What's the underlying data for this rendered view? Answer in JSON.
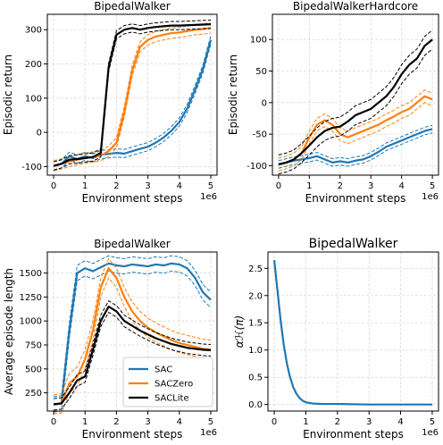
{
  "colors": {
    "SAC": "#1f77b4",
    "SACZero": "#ff7f0e",
    "SACLite": "#000000",
    "grid": "#d9d9d9"
  },
  "chart_data": [
    {
      "type": "line",
      "title": "BipedalWalker",
      "xlabel": "Environment steps",
      "ylabel": "Episodic return",
      "x_offset_label": "1e6",
      "xlim": [
        -0.2,
        5.2
      ],
      "ylim": [
        -125,
        345
      ],
      "xticks": [
        0,
        1,
        2,
        3,
        4,
        5
      ],
      "yticks": [
        -100,
        0,
        100,
        200,
        300
      ],
      "grid": true,
      "series": [
        {
          "name": "SAC",
          "x": [
            0,
            0.25,
            0.5,
            0.75,
            1.0,
            1.25,
            1.5,
            1.75,
            2.0,
            2.25,
            2.5,
            2.75,
            3.0,
            3.25,
            3.5,
            3.75,
            4.0,
            4.25,
            4.5,
            4.75,
            5.0
          ],
          "y": [
            -98,
            -92,
            -70,
            -78,
            -70,
            -75,
            -65,
            -63,
            -60,
            -62,
            -55,
            -48,
            -42,
            -30,
            -15,
            5,
            30,
            70,
            125,
            185,
            270
          ],
          "band": 12
        },
        {
          "name": "SACZero",
          "x": [
            0,
            0.25,
            0.5,
            0.75,
            1.0,
            1.25,
            1.5,
            1.75,
            2.0,
            2.25,
            2.5,
            2.75,
            3.0,
            3.25,
            3.5,
            3.75,
            4.0,
            4.25,
            4.5,
            4.75,
            5.0
          ],
          "y": [
            -98,
            -92,
            -85,
            -80,
            -75,
            -72,
            -68,
            -55,
            -30,
            60,
            180,
            250,
            270,
            280,
            285,
            290,
            292,
            296,
            300,
            302,
            305
          ],
          "band": 15
        },
        {
          "name": "SACLite",
          "x": [
            0,
            0.25,
            0.5,
            0.75,
            1.0,
            1.25,
            1.5,
            1.75,
            2.0,
            2.25,
            2.5,
            2.75,
            3.0,
            3.25,
            3.5,
            3.75,
            4.0,
            4.25,
            4.5,
            4.75,
            5.0
          ],
          "y": [
            -98,
            -92,
            -80,
            -78,
            -75,
            -72,
            -60,
            190,
            285,
            300,
            305,
            300,
            305,
            308,
            310,
            312,
            312,
            313,
            314,
            315,
            316
          ],
          "band": 12
        }
      ]
    },
    {
      "type": "line",
      "title": "BipedalWalkerHardcore",
      "xlabel": "Environment steps",
      "ylabel": "Episodic return",
      "x_offset_label": "1e6",
      "xlim": [
        -0.2,
        5.2
      ],
      "ylim": [
        -115,
        140
      ],
      "xticks": [
        0,
        1,
        2,
        3,
        4,
        5
      ],
      "yticks": [
        -100,
        -50,
        0,
        50,
        100
      ],
      "grid": true,
      "series": [
        {
          "name": "SAC",
          "x": [
            0,
            0.25,
            0.5,
            0.75,
            1.0,
            1.25,
            1.5,
            1.75,
            2.0,
            2.25,
            2.5,
            2.75,
            3.0,
            3.25,
            3.5,
            3.75,
            4.0,
            4.25,
            4.5,
            4.75,
            5.0
          ],
          "y": [
            -98,
            -95,
            -92,
            -90,
            -88,
            -85,
            -90,
            -95,
            -93,
            -95,
            -92,
            -90,
            -85,
            -78,
            -70,
            -65,
            -60,
            -55,
            -50,
            -45,
            -42
          ],
          "band": 6
        },
        {
          "name": "SACZero",
          "x": [
            0,
            0.25,
            0.5,
            0.75,
            1.0,
            1.25,
            1.5,
            1.75,
            2.0,
            2.25,
            2.5,
            2.75,
            3.0,
            3.25,
            3.5,
            3.75,
            4.0,
            4.25,
            4.5,
            4.75,
            5.0
          ],
          "y": [
            -98,
            -95,
            -90,
            -80,
            -55,
            -35,
            -28,
            -35,
            -50,
            -55,
            -50,
            -45,
            -40,
            -35,
            -28,
            -22,
            -15,
            -10,
            0,
            10,
            5
          ],
          "band": 10
        },
        {
          "name": "SACLite",
          "x": [
            0,
            0.25,
            0.5,
            0.75,
            1.0,
            1.25,
            1.5,
            1.75,
            2.0,
            2.25,
            2.5,
            2.75,
            3.0,
            3.25,
            3.5,
            3.75,
            4.0,
            4.25,
            4.5,
            4.75,
            5.0
          ],
          "y": [
            -98,
            -95,
            -90,
            -80,
            -68,
            -55,
            -45,
            -40,
            -38,
            -30,
            -20,
            -15,
            -10,
            0,
            10,
            25,
            45,
            60,
            70,
            90,
            100
          ],
          "band": 15
        }
      ]
    },
    {
      "type": "line",
      "title": "BipedalWalker",
      "xlabel": "Environment steps",
      "ylabel": "Average episode length",
      "x_offset_label": "1e6",
      "xlim": [
        -0.2,
        5.2
      ],
      "ylim": [
        60,
        1720
      ],
      "xticks": [
        0,
        1,
        2,
        3,
        4,
        5
      ],
      "yticks": [
        250,
        500,
        750,
        1000,
        1250,
        1500
      ],
      "yticklabels": [
        "250",
        "500",
        "750",
        "1000",
        "1250",
        "1500"
      ],
      "grid": true,
      "legend": {
        "position": "lower-right",
        "entries": [
          "SAC",
          "SACZero",
          "SACLite"
        ]
      },
      "series": [
        {
          "name": "SAC",
          "x": [
            0,
            0.25,
            0.5,
            0.75,
            1.0,
            1.25,
            1.5,
            1.75,
            2.0,
            2.25,
            2.5,
            2.75,
            3.0,
            3.25,
            3.5,
            3.75,
            4.0,
            4.25,
            4.5,
            4.75,
            5.0
          ],
          "y": [
            130,
            140,
            900,
            1500,
            1550,
            1520,
            1560,
            1600,
            1580,
            1570,
            1590,
            1580,
            1570,
            1590,
            1580,
            1600,
            1590,
            1550,
            1450,
            1300,
            1220
          ],
          "band": 80
        },
        {
          "name": "SACZero",
          "x": [
            0,
            0.25,
            0.5,
            0.75,
            1.0,
            1.25,
            1.5,
            1.75,
            2.0,
            2.25,
            2.5,
            2.75,
            3.0,
            3.25,
            3.5,
            3.75,
            4.0,
            4.25,
            4.5,
            4.75,
            5.0
          ],
          "y": [
            130,
            140,
            350,
            420,
            600,
            900,
            1350,
            1550,
            1450,
            1250,
            1100,
            1000,
            930,
            880,
            840,
            800,
            770,
            750,
            730,
            710,
            700
          ],
          "band": 100
        },
        {
          "name": "SACLite",
          "x": [
            0,
            0.25,
            0.5,
            0.75,
            1.0,
            1.25,
            1.5,
            1.75,
            2.0,
            2.25,
            2.5,
            2.75,
            3.0,
            3.25,
            3.5,
            3.75,
            4.0,
            4.25,
            4.5,
            4.75,
            5.0
          ],
          "y": [
            130,
            140,
            250,
            380,
            420,
            700,
            1000,
            1150,
            1100,
            1000,
            950,
            900,
            860,
            820,
            790,
            760,
            740,
            720,
            710,
            700,
            695
          ],
          "band": 60
        }
      ]
    },
    {
      "type": "line",
      "title": "BipedalWalker",
      "xlabel": "Environment steps",
      "ylabel": "αℋ(π)",
      "x_offset_label": "1e6",
      "xlim": [
        -0.2,
        5.2
      ],
      "ylim": [
        -0.12,
        2.8
      ],
      "xticks": [
        0,
        1,
        2,
        3,
        4,
        5
      ],
      "yticks": [
        0.0,
        0.5,
        1.0,
        1.5,
        2.0,
        2.5
      ],
      "yticklabels": [
        "0.0",
        "0.5",
        "1.0",
        "1.5",
        "2.0",
        "2.5"
      ],
      "grid": true,
      "series": [
        {
          "name": "SAC",
          "x": [
            0,
            0.1,
            0.2,
            0.3,
            0.4,
            0.5,
            0.6,
            0.7,
            0.8,
            0.9,
            1.0,
            1.2,
            1.5,
            2.0,
            3.0,
            4.0,
            5.0
          ],
          "y": [
            2.65,
            2.1,
            1.55,
            1.1,
            0.75,
            0.5,
            0.32,
            0.2,
            0.12,
            0.07,
            0.04,
            0.02,
            0.01,
            0.01,
            0.0,
            0.0,
            0.0
          ],
          "band": 0
        }
      ]
    }
  ]
}
